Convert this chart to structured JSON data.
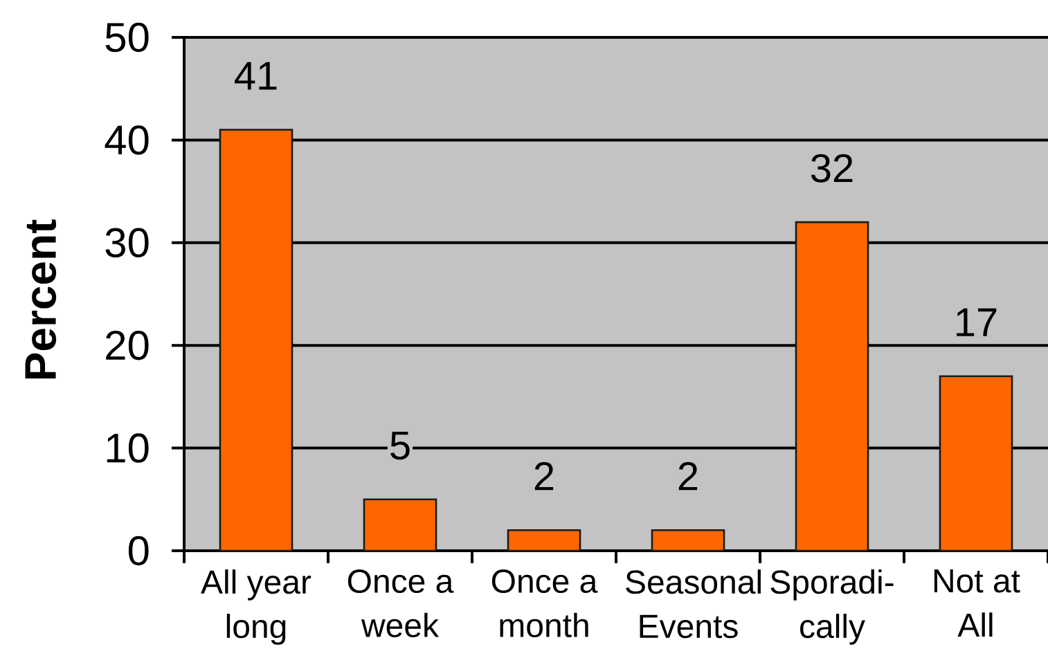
{
  "chart_data": {
    "type": "bar",
    "ylabel": "Percent",
    "categories": [
      "All year long",
      "Once a week",
      "Once a month",
      "Seasonal Events",
      "Sporadi-cally",
      "Not at All"
    ],
    "values": [
      41,
      5,
      2,
      2,
      32,
      17
    ],
    "color": "#ff6600",
    "ylim": [
      0,
      50
    ],
    "yticks": [
      0,
      10,
      20,
      30,
      40,
      50
    ],
    "grid": "y",
    "data_labels": true
  }
}
